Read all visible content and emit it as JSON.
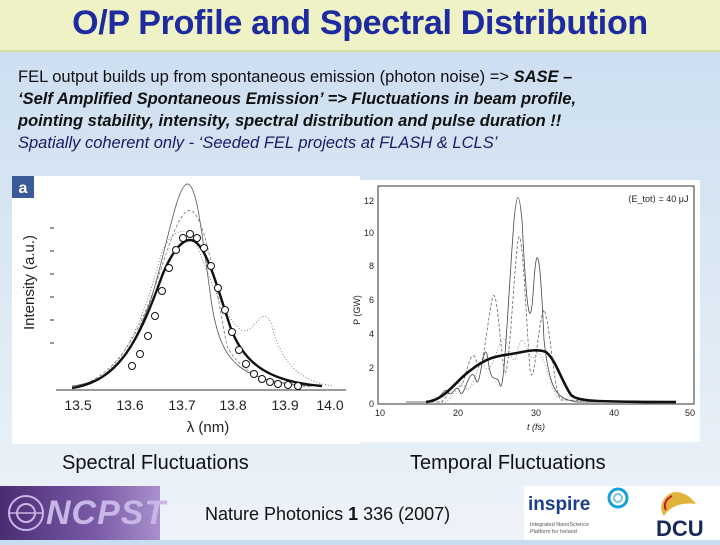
{
  "title": "O/P Profile and Spectral Distribution",
  "body": {
    "line1_plain": "FEL output builds up from spontaneous emission (photon noise)  => ",
    "line1_bold": "SASE –",
    "line2": "‘Self Amplified Spontaneous Emission’ => Fluctuations in beam profile,",
    "line3": "pointing stability, intensity, spectral distribution and pulse duration !!",
    "line4": "Spatially coherent only - ‘Seeded FEL projects at FLASH & LCLS’"
  },
  "figure_left": {
    "panel_label": "a",
    "ylabel": "Intensity (a.u.)",
    "xlabel": "λ (nm)",
    "xticks": [
      "13.5",
      "13.6",
      "13.7",
      "13.8",
      "13.9",
      "14.0"
    ]
  },
  "figure_right": {
    "legend": "⟨E_tot⟩ = 40 μJ",
    "ylabel": "P (GW)",
    "xlabel": "t (fs)",
    "yticks": [
      "0",
      "2",
      "4",
      "6",
      "8",
      "10",
      "12"
    ],
    "xticks": [
      "10",
      "20",
      "30",
      "40",
      "50"
    ]
  },
  "captions": {
    "left": "Spectral Fluctuations",
    "right": "Temporal Fluctuations"
  },
  "footer": {
    "logo_left": "NCPST",
    "reference_pre": "Nature Photonics ",
    "reference_bold": "1",
    "reference_post": " 336 (2007)",
    "logo_inspire": "inspire",
    "logo_inspire_sub1": "Integrated NanoScience",
    "logo_inspire_sub2": "Platform for Ireland",
    "logo_dcu": "DCU"
  },
  "colors": {
    "title": "#1d2aa0",
    "title_bg": "#eef2c4",
    "slide_bg": "#d4e3f2",
    "ncpst_bg": "#5e3f8d"
  }
}
